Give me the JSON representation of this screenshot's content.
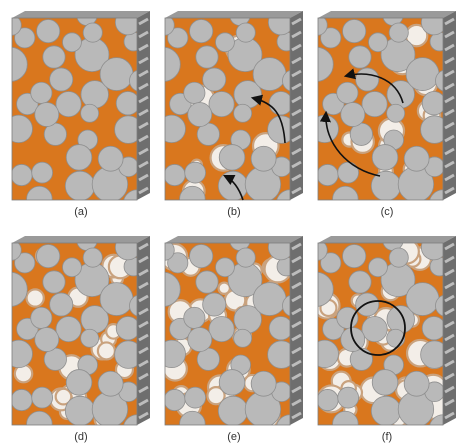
{
  "figure": {
    "colors": {
      "background": "#ffffff",
      "fluid": "#d9771e",
      "fluid_shadow": "#a4520f",
      "grain": "#b9b9b9",
      "grain_edge": "#8f8f8f",
      "side_face": "#6e6e6e",
      "top_face": "#9a9a9a",
      "film_residue": "#c9a27e",
      "arrow": "#111111"
    },
    "panels": [
      {
        "label": "(a)",
        "stage": 0,
        "annotation": "none"
      },
      {
        "label": "(b)",
        "stage": 1,
        "annotation": "two curved arrows"
      },
      {
        "label": "(c)",
        "stage": 2,
        "annotation": "two curved arrows"
      },
      {
        "label": "(d)",
        "stage": 3,
        "annotation": "none"
      },
      {
        "label": "(e)",
        "stage": 4,
        "annotation": "none"
      },
      {
        "label": "(f)",
        "stage": 5,
        "annotation": "circle"
      }
    ]
  }
}
